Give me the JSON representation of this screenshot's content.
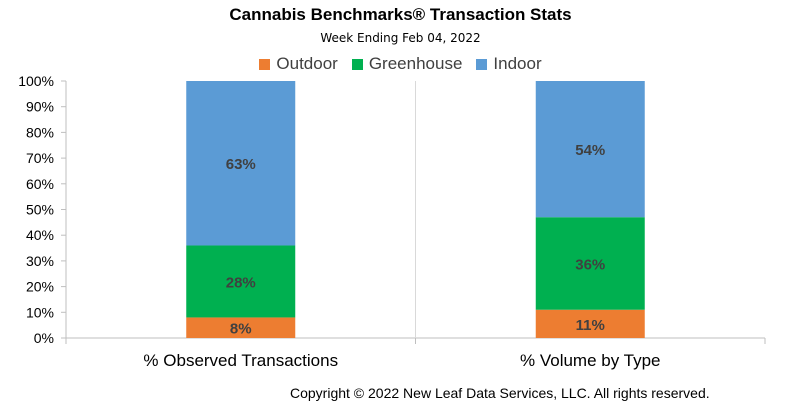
{
  "chart_data": {
    "type": "bar",
    "stacked": true,
    "title": "Cannabis Benchmarks® Transaction Stats",
    "subtitle": "Week Ending Feb 04, 2022",
    "categories": [
      "% Observed Transactions",
      "% Volume by Type"
    ],
    "series": [
      {
        "name": "Outdoor",
        "values": [
          8,
          11
        ],
        "labels": [
          "8%",
          "11%"
        ],
        "color": "#ED7D31"
      },
      {
        "name": "Greenhouse",
        "values": [
          28,
          36
        ],
        "labels": [
          "28%",
          "36%"
        ],
        "color": "#00B050"
      },
      {
        "name": "Indoor",
        "values": [
          63,
          54
        ],
        "labels": [
          "63%",
          "54%"
        ],
        "color": "#5B9BD5"
      }
    ],
    "ylim": [
      0,
      100
    ],
    "yticks": [
      "0%",
      "10%",
      "20%",
      "30%",
      "40%",
      "50%",
      "60%",
      "70%",
      "80%",
      "90%",
      "100%"
    ],
    "legend_position": "top",
    "grid": false
  },
  "footer": {
    "copyright": "Copyright © 2022 New Leaf Data Services, LLC. All rights reserved."
  }
}
